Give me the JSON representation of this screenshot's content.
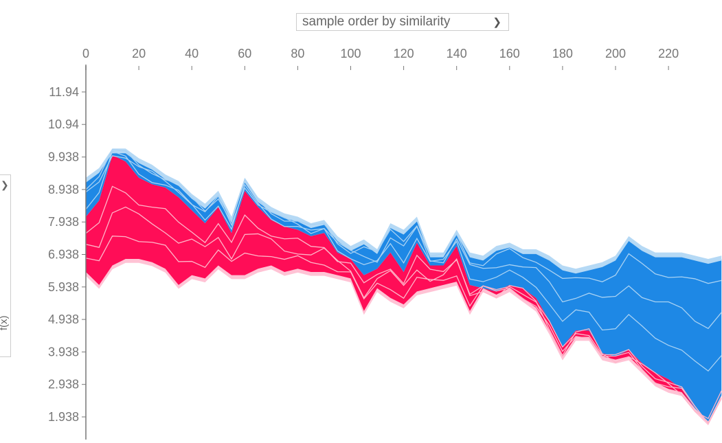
{
  "controls": {
    "order_select": {
      "value": "sample order by similarity",
      "icon": "chevron-down-icon"
    },
    "y_select": {
      "value": "f(x)",
      "icon": "chevron-right-icon"
    }
  },
  "colors": {
    "positive": "#ff0d57",
    "positive_light": "#ffc3d5",
    "negative": "#1e88e5",
    "negative_light": "#b5d9f5"
  },
  "chart_data": {
    "type": "area",
    "subtype": "shap-force-plot-stacked",
    "xlabel": "",
    "ylabel": "f(x)",
    "xlim": [
      0,
      240
    ],
    "ylim": [
      1.5,
      12.3
    ],
    "x_ticks": [
      0,
      20,
      40,
      60,
      80,
      100,
      120,
      140,
      160,
      180,
      200,
      220
    ],
    "y_ticks": [
      1.938,
      2.938,
      3.938,
      4.938,
      5.938,
      6.938,
      7.938,
      8.938,
      9.938,
      10.94,
      11.94
    ],
    "y_tick_labels": [
      "1.938",
      "2.938",
      "3.938",
      "4.938",
      "5.938",
      "6.938",
      "7.938",
      "8.938",
      "9.938",
      "10.94",
      "11.94"
    ],
    "x_axis_position": "top",
    "grid": false,
    "legend": "none",
    "samples": [
      {
        "x": 0,
        "bottom": 6.4,
        "output": 8.1,
        "top": 9.2
      },
      {
        "x": 5,
        "bottom": 6.0,
        "output": 8.6,
        "top": 9.5
      },
      {
        "x": 10,
        "bottom": 6.6,
        "output": 10.0,
        "top": 10.1
      },
      {
        "x": 15,
        "bottom": 6.8,
        "output": 9.8,
        "top": 10.1
      },
      {
        "x": 20,
        "bottom": 6.8,
        "output": 9.3,
        "top": 9.8
      },
      {
        "x": 25,
        "bottom": 6.7,
        "output": 9.1,
        "top": 9.6
      },
      {
        "x": 30,
        "bottom": 6.5,
        "output": 9.0,
        "top": 9.3
      },
      {
        "x": 35,
        "bottom": 6.0,
        "output": 8.7,
        "top": 9.1
      },
      {
        "x": 40,
        "bottom": 6.3,
        "output": 8.3,
        "top": 8.7
      },
      {
        "x": 45,
        "bottom": 6.2,
        "output": 7.9,
        "top": 8.4
      },
      {
        "x": 50,
        "bottom": 6.6,
        "output": 8.4,
        "top": 8.8
      },
      {
        "x": 55,
        "bottom": 6.3,
        "output": 7.6,
        "top": 8.0
      },
      {
        "x": 60,
        "bottom": 6.3,
        "output": 8.9,
        "top": 9.2
      },
      {
        "x": 65,
        "bottom": 6.5,
        "output": 8.4,
        "top": 8.6
      },
      {
        "x": 70,
        "bottom": 6.6,
        "output": 8.0,
        "top": 8.3
      },
      {
        "x": 75,
        "bottom": 6.4,
        "output": 7.8,
        "top": 8.1
      },
      {
        "x": 80,
        "bottom": 6.5,
        "output": 7.7,
        "top": 8.0
      },
      {
        "x": 85,
        "bottom": 6.4,
        "output": 7.5,
        "top": 7.8
      },
      {
        "x": 90,
        "bottom": 6.4,
        "output": 7.6,
        "top": 7.9
      },
      {
        "x": 95,
        "bottom": 6.3,
        "output": 7.0,
        "top": 7.4
      },
      {
        "x": 100,
        "bottom": 6.2,
        "output": 6.8,
        "top": 7.1
      },
      {
        "x": 105,
        "bottom": 5.2,
        "output": 6.3,
        "top": 7.3
      },
      {
        "x": 110,
        "bottom": 5.9,
        "output": 6.5,
        "top": 7.0
      },
      {
        "x": 115,
        "bottom": 5.6,
        "output": 7.0,
        "top": 7.8
      },
      {
        "x": 120,
        "bottom": 5.4,
        "output": 6.4,
        "top": 7.6
      },
      {
        "x": 125,
        "bottom": 5.8,
        "output": 7.3,
        "top": 8.0
      },
      {
        "x": 130,
        "bottom": 5.9,
        "output": 6.6,
        "top": 6.9
      },
      {
        "x": 135,
        "bottom": 6.0,
        "output": 6.6,
        "top": 6.9
      },
      {
        "x": 140,
        "bottom": 6.1,
        "output": 7.2,
        "top": 7.6
      },
      {
        "x": 145,
        "bottom": 5.2,
        "output": 6.0,
        "top": 6.9
      },
      {
        "x": 150,
        "bottom": 5.9,
        "output": 5.9,
        "top": 6.8
      },
      {
        "x": 155,
        "bottom": 5.7,
        "output": 5.8,
        "top": 7.1
      },
      {
        "x": 160,
        "bottom": 5.9,
        "output": 6.0,
        "top": 7.2
      },
      {
        "x": 165,
        "bottom": 5.6,
        "output": 5.9,
        "top": 7.0
      },
      {
        "x": 170,
        "bottom": 5.3,
        "output": 5.6,
        "top": 7.0
      },
      {
        "x": 175,
        "bottom": 4.6,
        "output": 4.9,
        "top": 6.8
      },
      {
        "x": 180,
        "bottom": 3.8,
        "output": 4.1,
        "top": 6.5
      },
      {
        "x": 185,
        "bottom": 4.4,
        "output": 4.6,
        "top": 6.4
      },
      {
        "x": 190,
        "bottom": 4.4,
        "output": 4.6,
        "top": 6.5
      },
      {
        "x": 195,
        "bottom": 3.8,
        "output": 3.9,
        "top": 6.6
      },
      {
        "x": 200,
        "bottom": 3.7,
        "output": 3.8,
        "top": 6.8
      },
      {
        "x": 205,
        "bottom": 3.8,
        "output": 4.0,
        "top": 7.4
      },
      {
        "x": 210,
        "bottom": 3.4,
        "output": 3.6,
        "top": 7.1
      },
      {
        "x": 215,
        "bottom": 3.0,
        "output": 3.3,
        "top": 6.9
      },
      {
        "x": 220,
        "bottom": 2.8,
        "output": 3.1,
        "top": 6.9
      },
      {
        "x": 225,
        "bottom": 2.7,
        "output": 2.8,
        "top": 6.9
      },
      {
        "x": 230,
        "bottom": 2.2,
        "output": 2.2,
        "top": 6.8
      },
      {
        "x": 235,
        "bottom": 1.8,
        "output": 1.8,
        "top": 6.7
      },
      {
        "x": 240,
        "bottom": 2.6,
        "output": 2.6,
        "top": 6.8
      }
    ]
  }
}
